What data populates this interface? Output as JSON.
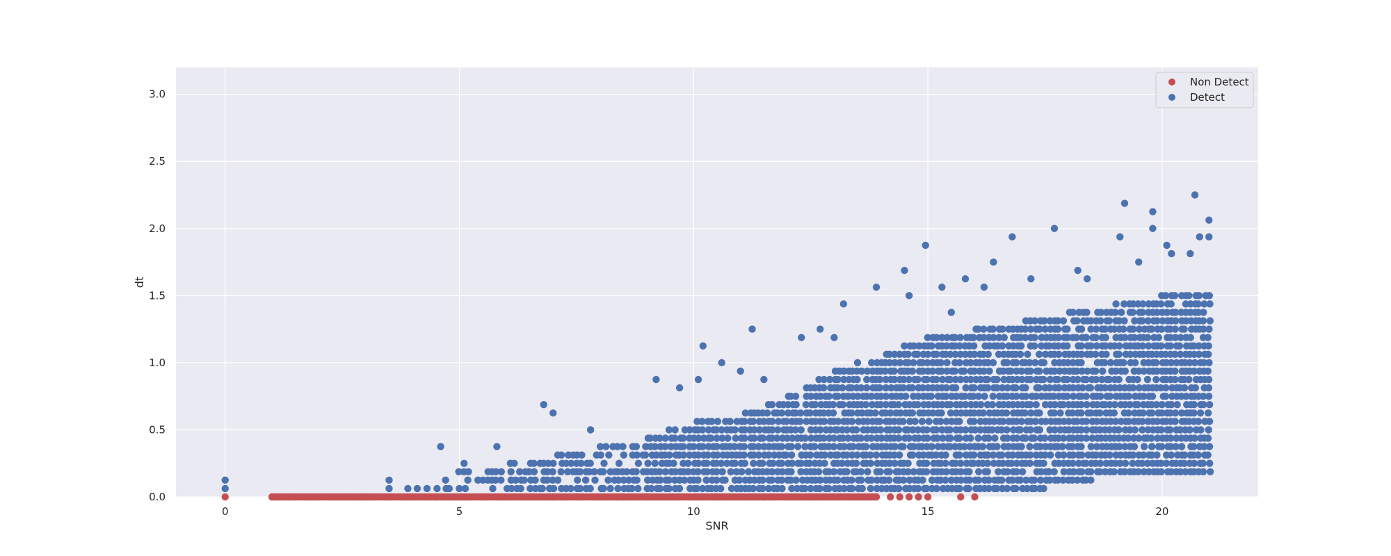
{
  "chart_data": {
    "type": "scatter",
    "title": "",
    "xlabel": "SNR",
    "ylabel": "dt",
    "xlim": [
      -1.05,
      22.05
    ],
    "ylim": [
      0,
      3.2
    ],
    "xticks": [
      0,
      5,
      10,
      15,
      20
    ],
    "yticks": [
      0.0,
      0.5,
      1.0,
      1.5,
      2.0,
      2.5,
      3.0
    ],
    "xtick_labels": [
      "0",
      "5",
      "10",
      "15",
      "20"
    ],
    "ytick_labels": [
      "0.0",
      "0.5",
      "1.0",
      "1.5",
      "2.0",
      "2.5",
      "3.0"
    ],
    "grid": true,
    "legend_position": "top-right",
    "colors": {
      "background": "#eaeaf2",
      "grid": "#ffffff",
      "non_detect": "#c44e52",
      "detect": "#4c72b0"
    },
    "series": [
      {
        "name": "Non Detect",
        "color": "#c44e52",
        "notes": "dense points along dt = 0 for SNR from about 1 to 13.9, plus scattered points up to SNR 16",
        "points": [
          [
            0,
            0
          ],
          [
            1.0,
            0
          ],
          [
            1.5,
            0
          ],
          [
            2.0,
            0
          ],
          [
            2.5,
            0
          ],
          [
            3.0,
            0
          ],
          [
            3.5,
            0
          ],
          [
            4.0,
            0
          ],
          [
            4.5,
            0
          ],
          [
            5.0,
            0
          ],
          [
            5.5,
            0
          ],
          [
            6.0,
            0
          ],
          [
            6.5,
            0
          ],
          [
            7.0,
            0
          ],
          [
            7.5,
            0
          ],
          [
            8.0,
            0
          ],
          [
            8.5,
            0
          ],
          [
            9.0,
            0
          ],
          [
            9.5,
            0
          ],
          [
            10.0,
            0
          ],
          [
            10.5,
            0
          ],
          [
            11.0,
            0
          ],
          [
            11.5,
            0
          ],
          [
            12.0,
            0
          ],
          [
            12.5,
            0
          ],
          [
            13.0,
            0
          ],
          [
            13.5,
            0
          ],
          [
            13.9,
            0
          ],
          [
            14.2,
            0
          ],
          [
            14.4,
            0
          ],
          [
            14.6,
            0
          ],
          [
            14.8,
            0
          ],
          [
            15.0,
            0
          ],
          [
            15.7,
            0
          ],
          [
            16.0,
            0
          ]
        ]
      },
      {
        "name": "Detect",
        "color": "#4c72b0",
        "notes": "dense quantized cloud (dt step 0.0625) between SNR ~4 and 21; lower envelope rises above 0.19 for SNR > 18",
        "envelope": {
          "snr_start": 4.2,
          "snr_end": 21.0,
          "max_dt_anchors": [
            [
              4.2,
              0.12
            ],
            [
              5,
              0.19
            ],
            [
              6,
              0.25
            ],
            [
              7,
              0.31
            ],
            [
              8,
              0.38
            ],
            [
              9,
              0.44
            ],
            [
              10,
              0.56
            ],
            [
              11,
              0.62
            ],
            [
              12,
              0.75
            ],
            [
              13,
              0.94
            ],
            [
              14,
              1.06
            ],
            [
              15,
              1.19
            ],
            [
              16,
              1.25
            ],
            [
              17,
              1.31
            ],
            [
              18,
              1.38
            ],
            [
              19,
              1.44
            ],
            [
              20,
              1.5
            ],
            [
              21,
              1.56
            ]
          ]
        },
        "points": [
          [
            0,
            0.0625
          ],
          [
            0,
            0.125
          ],
          [
            3.5,
            0.0625
          ],
          [
            3.5,
            0.125
          ],
          [
            3.9,
            0.0625
          ],
          [
            4.1,
            0.0625
          ],
          [
            4.6,
            0.375
          ],
          [
            5.1,
            0.25
          ],
          [
            5.8,
            0.375
          ],
          [
            6.8,
            0.6875
          ],
          [
            7.0,
            0.625
          ],
          [
            7.8,
            0.5
          ],
          [
            9.2,
            0.875
          ],
          [
            9.7,
            0.8125
          ],
          [
            10.1,
            0.875
          ],
          [
            10.2,
            1.125
          ],
          [
            10.6,
            1.0
          ],
          [
            11.0,
            0.9375
          ],
          [
            11.25,
            1.25
          ],
          [
            11.5,
            0.875
          ],
          [
            12.3,
            1.1875
          ],
          [
            12.7,
            1.25
          ],
          [
            13.0,
            1.1875
          ],
          [
            13.2,
            1.4375
          ],
          [
            13.9,
            1.5625
          ],
          [
            14.5,
            1.6875
          ],
          [
            14.6,
            1.5
          ],
          [
            14.95,
            1.875
          ],
          [
            15.3,
            1.5625
          ],
          [
            15.5,
            1.375
          ],
          [
            15.8,
            1.625
          ],
          [
            16.2,
            1.5625
          ],
          [
            16.4,
            1.75
          ],
          [
            16.8,
            1.9375
          ],
          [
            17.2,
            1.625
          ],
          [
            17.7,
            2.0
          ],
          [
            18.2,
            1.6875
          ],
          [
            18.4,
            1.625
          ],
          [
            19.2,
            2.1875
          ],
          [
            19.1,
            1.9375
          ],
          [
            19.5,
            1.75
          ],
          [
            19.8,
            2.125
          ],
          [
            19.8,
            2.0
          ],
          [
            20.1,
            1.875
          ],
          [
            20.2,
            1.8125
          ],
          [
            20.6,
            1.8125
          ],
          [
            20.7,
            2.25
          ],
          [
            20.8,
            1.9375
          ],
          [
            21.0,
            2.0625
          ],
          [
            21.0,
            1.9375
          ]
        ]
      }
    ]
  }
}
